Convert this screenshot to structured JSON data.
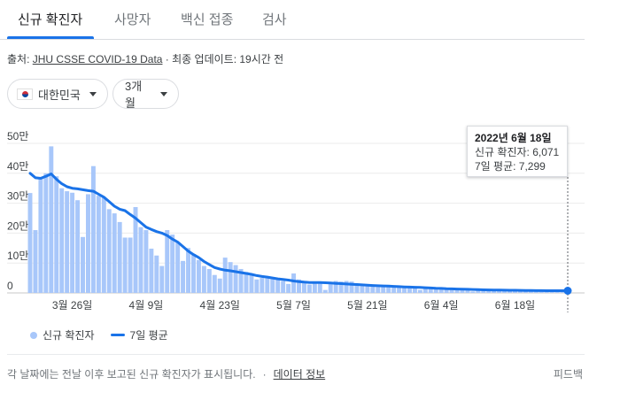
{
  "tabs": [
    {
      "label": "신규 확진자"
    },
    {
      "label": "사망자"
    },
    {
      "label": "백신 접종"
    },
    {
      "label": "검사"
    }
  ],
  "source": {
    "prefix": "출처: ",
    "link_text": "JHU CSSE COVID-19 Data",
    "suffix": " · 최종 업데이트: 19시간 전"
  },
  "filters": {
    "country": "대한민국",
    "country_flag_icon": "south-korea-flag-icon",
    "period": "3개월"
  },
  "tooltip": {
    "date": "2022년 6월 18일",
    "new_cases": "신규 확진자: 6,071",
    "avg7": "7일 평균: 7,299"
  },
  "legend": {
    "bars": "신규 확진자",
    "line": "7일 평균"
  },
  "footer": {
    "note": "각 날짜에는 전날 이후 보고된 신규 확진자가 표시됩니다.",
    "link": "데이터 정보",
    "feedback": "피드백"
  },
  "colors": {
    "bar": "#a8c7fa",
    "line": "#1a73e8",
    "grid": "#ebebeb"
  },
  "chart_data": {
    "type": "bar",
    "start_date": "2022-03-18",
    "x_tick_labels": [
      "3월 26일",
      "4월 9일",
      "4월 23일",
      "5월 7일",
      "5월 21일",
      "6월 4일",
      "6월 18일"
    ],
    "y_tick_labels": [
      "0",
      "10만",
      "20만",
      "30만",
      "40만",
      "50만"
    ],
    "ylim": [
      0,
      500000
    ],
    "series": [
      {
        "name": "신규 확진자",
        "type": "bar",
        "values": [
          334000,
          210000,
          382000,
          400000,
          490000,
          390000,
          350000,
          340000,
          335000,
          310000,
          187000,
          330000,
          424000,
          325000,
          320000,
          280000,
          266000,
          237000,
          185000,
          185000,
          287000,
          220000,
          210000,
          148000,
          125000,
          90000,
          210000,
          195000,
          170000,
          107000,
          150000,
          130000,
          110000,
          90000,
          80000,
          60000,
          48000,
          118000,
          103000,
          93000,
          80000,
          70000,
          65000,
          45000,
          50000,
          50000,
          52000,
          45000,
          40000,
          30000,
          65000,
          45000,
          38000,
          28000,
          35000,
          35000,
          10000,
          30000,
          40000,
          38000,
          40000,
          38000,
          30000,
          28000,
          26000,
          22000,
          20000,
          25000,
          23000,
          22000,
          20000,
          19000,
          20000,
          18000,
          10000,
          15000,
          14000,
          13000,
          13000,
          12000,
          11000,
          10000,
          10000,
          9000,
          5000,
          9000,
          8000,
          8000,
          7000,
          7000,
          6500,
          6000,
          6000,
          5500,
          5500,
          5000,
          4000,
          7000,
          6500,
          6500,
          6000,
          6000,
          6071
        ]
      },
      {
        "name": "7일 평균",
        "type": "line",
        "values": [
          400000,
          385000,
          383000,
          390000,
          398000,
          380000,
          365000,
          355000,
          350000,
          348000,
          345000,
          342000,
          340000,
          330000,
          320000,
          305000,
          290000,
          280000,
          275000,
          262000,
          250000,
          235000,
          220000,
          212000,
          205000,
          200000,
          192000,
          180000,
          170000,
          155000,
          140000,
          128000,
          118000,
          105000,
          95000,
          85000,
          80000,
          76000,
          74000,
          71000,
          68000,
          65000,
          62000,
          58000,
          55000,
          53000,
          50000,
          47000,
          45000,
          43000,
          40000,
          38000,
          36000,
          35000,
          35000,
          35000,
          34000,
          33000,
          32000,
          31000,
          30000,
          29000,
          28000,
          27000,
          26000,
          25000,
          24000,
          23500,
          23000,
          22000,
          21000,
          20000,
          19500,
          19000,
          18500,
          17500,
          16500,
          15500,
          15000,
          14000,
          13500,
          13000,
          12500,
          12000,
          11500,
          11000,
          10500,
          10000,
          9800,
          9500,
          9200,
          9000,
          8800,
          8500,
          8200,
          8000,
          7800,
          7600,
          7500,
          7400,
          7350,
          7320,
          7299
        ]
      }
    ]
  }
}
